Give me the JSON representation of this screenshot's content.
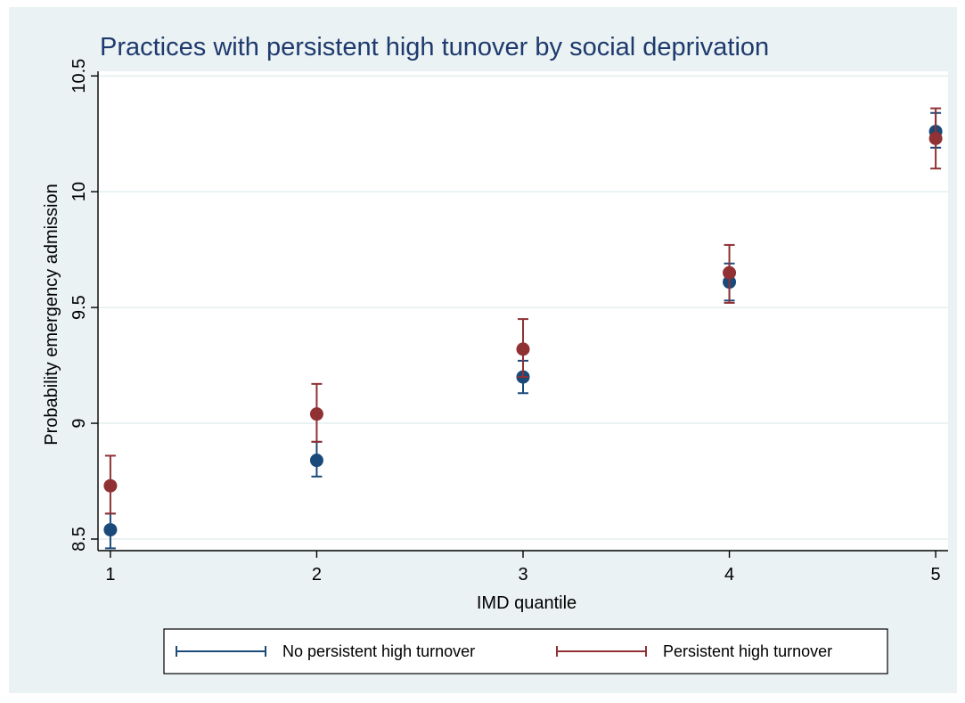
{
  "chart_data": {
    "type": "scatter",
    "title": "Practices with persistent high tunover by social deprivation",
    "xlabel": "IMD quantile",
    "ylabel": "Probability emergency admission",
    "x": [
      1,
      2,
      3,
      4,
      5
    ],
    "x_ticks": [
      "1",
      "2",
      "3",
      "4",
      "5"
    ],
    "y_ticks": [
      "8.5",
      "9",
      "9.5",
      "10",
      "10.5"
    ],
    "xlim": [
      0.94,
      5.06
    ],
    "ylim": [
      8.45,
      10.52
    ],
    "grid": true,
    "legend_position": "bottom",
    "error_bars": true,
    "series": [
      {
        "name": "No persistent high turnover",
        "color": "#1a4a7a",
        "values": [
          8.54,
          8.84,
          9.2,
          9.61,
          10.26
        ],
        "lower": [
          8.46,
          8.77,
          9.13,
          9.53,
          10.19
        ],
        "upper": [
          8.61,
          8.92,
          9.27,
          9.69,
          10.34
        ]
      },
      {
        "name": "Persistent high turnover",
        "color": "#903134",
        "values": [
          8.73,
          9.04,
          9.32,
          9.65,
          10.23
        ],
        "lower": [
          8.61,
          8.92,
          9.2,
          9.52,
          10.1
        ],
        "upper": [
          8.86,
          9.17,
          9.45,
          9.77,
          10.36
        ]
      }
    ]
  }
}
